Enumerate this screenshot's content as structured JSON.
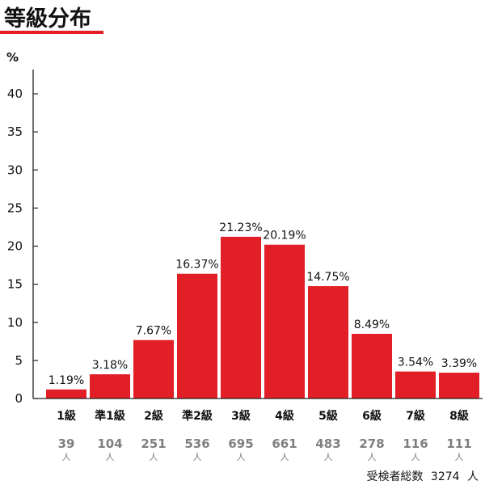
{
  "chart_data": {
    "type": "bar",
    "title": "等級分布",
    "xlabel": "",
    "ylabel": "%",
    "ylim": [
      0,
      40
    ],
    "yticks": [
      0,
      5,
      10,
      15,
      20,
      25,
      30,
      35,
      40
    ],
    "grid": false,
    "legend": "none",
    "categories": [
      "1級",
      "準1級",
      "2級",
      "準2級",
      "3級",
      "4級",
      "5級",
      "6級",
      "7級",
      "8級"
    ],
    "values": [
      1.19,
      3.18,
      7.67,
      16.37,
      21.23,
      20.19,
      14.75,
      8.49,
      3.54,
      3.39
    ],
    "counts": [
      39,
      104,
      251,
      536,
      695,
      661,
      483,
      278,
      116,
      111
    ],
    "count_unit": "人",
    "total_label": "受検者総数",
    "total": 3274,
    "total_unit": "人",
    "bar_color": "#e21f26",
    "accent_color": "#e21f26",
    "count_color": "#7f7f7f"
  }
}
